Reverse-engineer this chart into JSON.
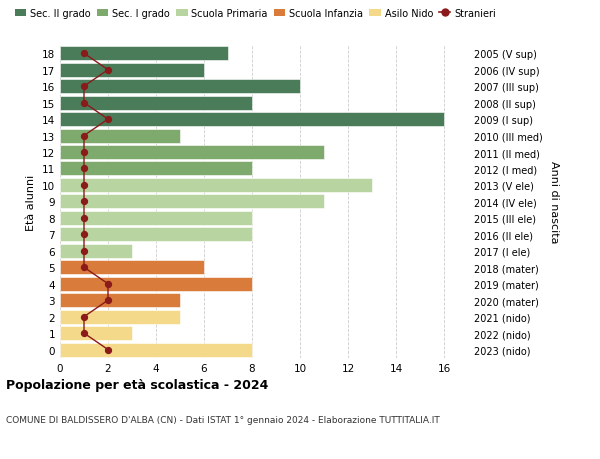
{
  "ages": [
    18,
    17,
    16,
    15,
    14,
    13,
    12,
    11,
    10,
    9,
    8,
    7,
    6,
    5,
    4,
    3,
    2,
    1,
    0
  ],
  "right_labels": [
    "2005 (V sup)",
    "2006 (IV sup)",
    "2007 (III sup)",
    "2008 (II sup)",
    "2009 (I sup)",
    "2010 (III med)",
    "2011 (II med)",
    "2012 (I med)",
    "2013 (V ele)",
    "2014 (IV ele)",
    "2015 (III ele)",
    "2016 (II ele)",
    "2017 (I ele)",
    "2018 (mater)",
    "2019 (mater)",
    "2020 (mater)",
    "2021 (nido)",
    "2022 (nido)",
    "2023 (nido)"
  ],
  "bar_values": [
    7,
    6,
    10,
    8,
    16,
    5,
    11,
    8,
    13,
    11,
    8,
    8,
    3,
    6,
    8,
    5,
    5,
    3,
    8
  ],
  "bar_colors": [
    "#4a7c59",
    "#4a7c59",
    "#4a7c59",
    "#4a7c59",
    "#4a7c59",
    "#7faa6e",
    "#7faa6e",
    "#7faa6e",
    "#b8d4a0",
    "#b8d4a0",
    "#b8d4a0",
    "#b8d4a0",
    "#b8d4a0",
    "#d97b3a",
    "#d97b3a",
    "#d97b3a",
    "#f5d98b",
    "#f5d98b",
    "#f5d98b"
  ],
  "stranieri_values": [
    1,
    2,
    1,
    1,
    2,
    1,
    1,
    1,
    1,
    1,
    1,
    1,
    1,
    1,
    2,
    2,
    1,
    1,
    2
  ],
  "stranieri_color": "#8b1a1a",
  "legend_items": [
    {
      "label": "Sec. II grado",
      "color": "#4a7c59"
    },
    {
      "label": "Sec. I grado",
      "color": "#7faa6e"
    },
    {
      "label": "Scuola Primaria",
      "color": "#b8d4a0"
    },
    {
      "label": "Scuola Infanzia",
      "color": "#d97b3a"
    },
    {
      "label": "Asilo Nido",
      "color": "#f5d98b"
    },
    {
      "label": "Stranieri",
      "color": "#8b1a1a"
    }
  ],
  "ylabel_left": "Età alunni",
  "ylabel_right": "Anni di nascita",
  "title": "Popolazione per età scolastica - 2024",
  "subtitle": "COMUNE DI BALDISSERO D'ALBA (CN) - Dati ISTAT 1° gennaio 2024 - Elaborazione TUTTITALIA.IT",
  "xlim": [
    0,
    17
  ],
  "xticks": [
    0,
    2,
    4,
    6,
    8,
    10,
    12,
    14,
    16
  ],
  "bg_color": "#ffffff",
  "grid_color": "#cccccc"
}
